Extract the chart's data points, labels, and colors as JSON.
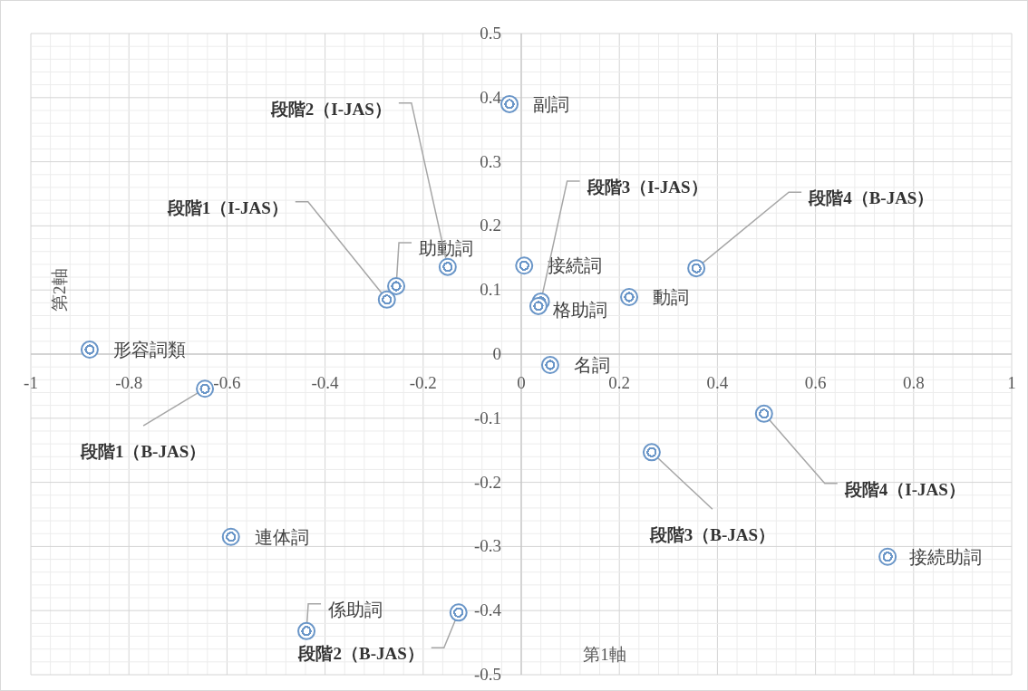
{
  "chart_data": {
    "type": "scatter",
    "xlabel": "第1軸",
    "ylabel": "第2軸",
    "series": [
      {
        "color": "#6a96c8",
        "x": [
          -0.024,
          0.006,
          0.035,
          0.22,
          -0.255,
          -0.88,
          0.059,
          0.747,
          -0.592,
          -0.438
        ],
        "values": [
          0.39,
          0.138,
          0.075,
          0.089,
          0.106,
          0.007,
          -0.017,
          -0.316,
          -0.285,
          -0.432
        ]
      },
      {
        "color": "#6a96c8",
        "x": [
          -0.274,
          -0.15,
          0.04,
          0.357,
          -0.645,
          -0.128,
          0.266,
          0.495
        ],
        "values": [
          0.085,
          0.136,
          0.082,
          0.134,
          -0.054,
          -0.403,
          -0.153,
          -0.093
        ]
      }
    ],
    "annotations": [
      {
        "text": "副詞",
        "x": -0.024,
        "y": 0.39
      },
      {
        "text": "接続詞",
        "x": 0.006,
        "y": 0.138
      },
      {
        "text": "格助詞",
        "x": 0.035,
        "y": 0.075
      },
      {
        "text": "動詞",
        "x": 0.22,
        "y": 0.089
      },
      {
        "text": "助動詞",
        "x": -0.255,
        "y": 0.106
      },
      {
        "text": "形容詞類",
        "x": -0.88,
        "y": 0.007
      },
      {
        "text": "名詞",
        "x": 0.059,
        "y": -0.017
      },
      {
        "text": "接続助詞",
        "x": 0.747,
        "y": -0.316
      },
      {
        "text": "連体詞",
        "x": -0.592,
        "y": -0.285
      },
      {
        "text": "係助詞",
        "x": -0.438,
        "y": -0.432
      },
      {
        "text": "段階1（I-JAS）",
        "x": -0.274,
        "y": 0.085
      },
      {
        "text": "段階2（I-JAS）",
        "x": -0.15,
        "y": 0.136
      },
      {
        "text": "段階3（I-JAS）",
        "x": 0.04,
        "y": 0.082
      },
      {
        "text": "段階4（B-JAS）",
        "x": 0.357,
        "y": 0.134
      },
      {
        "text": "段階1（B-JAS）",
        "x": -0.645,
        "y": -0.054
      },
      {
        "text": "段階2（B-JAS）",
        "x": -0.128,
        "y": -0.403
      },
      {
        "text": "段階3（B-JAS）",
        "x": 0.266,
        "y": -0.153
      },
      {
        "text": "段階4（I-JAS）",
        "x": 0.495,
        "y": -0.093
      }
    ],
    "xlim": [
      -1,
      1
    ],
    "xticks": [
      -1,
      -0.8,
      -0.6,
      -0.4,
      -0.2,
      0,
      0.2,
      0.4,
      0.6,
      0.8,
      1
    ],
    "ylim": [
      -0.5,
      0.5
    ],
    "yticks": [
      -0.5,
      -0.4,
      -0.3,
      -0.2,
      -0.1,
      0,
      0.1,
      0.2,
      0.3,
      0.4,
      0.5
    ],
    "grid": true,
    "marker": "circle"
  }
}
